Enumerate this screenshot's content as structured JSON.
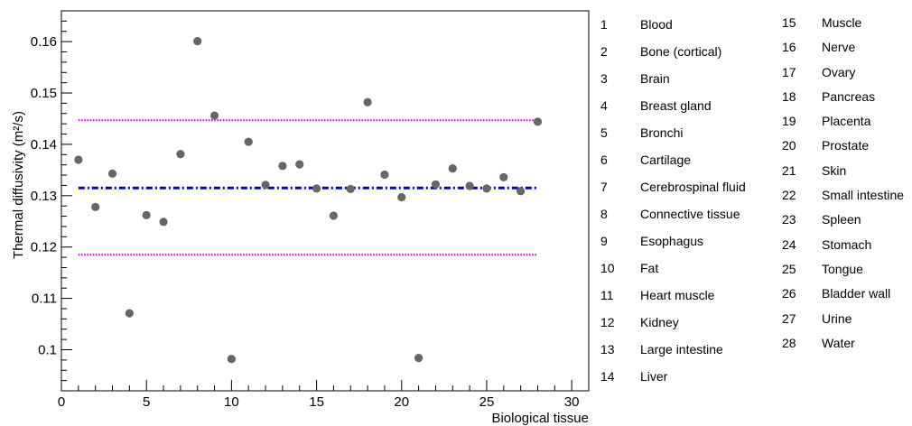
{
  "chart_data": {
    "type": "scatter",
    "title": "",
    "xlabel": "Biological tissue",
    "ylabel": "Thermal diffusivity (m²/s)",
    "xlim": [
      0,
      31
    ],
    "ylim": [
      0.092,
      0.166
    ],
    "x_ticks": [
      0,
      5,
      10,
      15,
      20,
      25,
      30
    ],
    "y_ticks": [
      0.1,
      0.11,
      0.12,
      0.13,
      0.14,
      0.15,
      0.16
    ],
    "grid": false,
    "legend_position": "right",
    "colors": {
      "points": "#666666",
      "mean_line": "#0000dd",
      "band_lines": "#ee00ee"
    },
    "series": [
      {
        "x": [
          1,
          2,
          3,
          4,
          5,
          6,
          7,
          8,
          9,
          10,
          11,
          12,
          13,
          14,
          15,
          16,
          17,
          18,
          19,
          20,
          21,
          22,
          23,
          24,
          25,
          26,
          27,
          28
        ],
        "y": [
          0.137,
          0.1278,
          0.1343,
          0.1071,
          0.1262,
          0.1249,
          0.1381,
          0.1601,
          0.1456,
          0.0982,
          0.1405,
          0.1321,
          0.1358,
          0.1361,
          0.1314,
          0.1261,
          0.1313,
          0.1482,
          0.1341,
          0.1297,
          0.0984,
          0.1322,
          0.1353,
          0.1319,
          0.1314,
          0.1336,
          0.1309,
          0.1444
        ]
      }
    ],
    "reference_lines": [
      {
        "style": "dash-dot",
        "y": 0.1315,
        "x_range": [
          1,
          28
        ]
      },
      {
        "style": "dotted",
        "y": 0.1447,
        "x_range": [
          1,
          28
        ]
      },
      {
        "style": "dotted",
        "y": 0.1185,
        "x_range": [
          1,
          28
        ]
      }
    ],
    "legend": [
      {
        "num": "1",
        "label": "Blood"
      },
      {
        "num": "2",
        "label": "Bone (cortical)"
      },
      {
        "num": "3",
        "label": "Brain"
      },
      {
        "num": "4",
        "label": "Breast gland"
      },
      {
        "num": "5",
        "label": "Bronchi"
      },
      {
        "num": "6",
        "label": "Cartilage"
      },
      {
        "num": "7",
        "label": "Cerebrospinal fluid"
      },
      {
        "num": "8",
        "label": "Connective tissue"
      },
      {
        "num": "9",
        "label": "Esophagus"
      },
      {
        "num": "10",
        "label": "Fat"
      },
      {
        "num": "11",
        "label": "Heart muscle"
      },
      {
        "num": "12",
        "label": "Kidney"
      },
      {
        "num": "13",
        "label": "Large intestine"
      },
      {
        "num": "14",
        "label": "Liver"
      },
      {
        "num": "15",
        "label": "Muscle"
      },
      {
        "num": "16",
        "label": "Nerve"
      },
      {
        "num": "17",
        "label": "Ovary"
      },
      {
        "num": "18",
        "label": "Pancreas"
      },
      {
        "num": "19",
        "label": "Placenta"
      },
      {
        "num": "20",
        "label": "Prostate"
      },
      {
        "num": "21",
        "label": "Skin"
      },
      {
        "num": "22",
        "label": "Small intestine"
      },
      {
        "num": "23",
        "label": "Spleen"
      },
      {
        "num": "24",
        "label": "Stomach"
      },
      {
        "num": "25",
        "label": "Tongue"
      },
      {
        "num": "26",
        "label": "Bladder wall"
      },
      {
        "num": "27",
        "label": "Urine"
      },
      {
        "num": "28",
        "label": "Water"
      }
    ]
  }
}
